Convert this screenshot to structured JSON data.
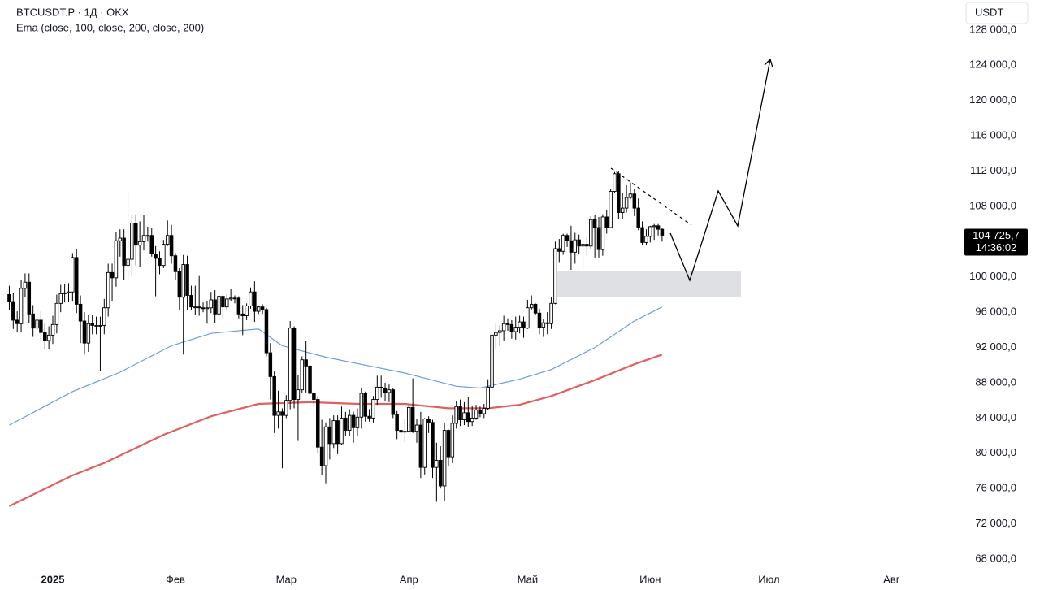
{
  "chart_data": {
    "type": "candlestick",
    "title": "BTCUSDT.P · 1Д · OKX",
    "subtitle": "Ema (close, 100, close, 200, close, 200)",
    "currency": "USDT",
    "last_price_label": "104 725,7",
    "countdown": "14:36:02",
    "up_color": "#ffffff",
    "down_color": "#000000",
    "xlim": [
      -13.35,
      230
    ],
    "xticks": [
      {
        "value": 0,
        "label": "2025"
      },
      {
        "value": 31,
        "label": "Фев"
      },
      {
        "value": 59,
        "label": "Мар"
      },
      {
        "value": 90,
        "label": "Апр"
      },
      {
        "value": 120,
        "label": "Май"
      },
      {
        "value": 151,
        "label": "Июн"
      },
      {
        "value": 181,
        "label": "Июл"
      },
      {
        "value": 212,
        "label": "Авг"
      }
    ],
    "ylim": [
      64500,
      131400
    ],
    "yticks": [
      {
        "value": 68000,
        "label": "68 000,0"
      },
      {
        "value": 72000,
        "label": "72 000,0"
      },
      {
        "value": 76000,
        "label": "76 000,0"
      },
      {
        "value": 80000,
        "label": "80 000,0"
      },
      {
        "value": 84000,
        "label": "84 000,0"
      },
      {
        "value": 88000,
        "label": "88 000,0"
      },
      {
        "value": 92000,
        "label": "92 000,0"
      },
      {
        "value": 96000,
        "label": "96 000,0"
      },
      {
        "value": 100000,
        "label": "100 000,0"
      },
      {
        "value": 104000,
        "label": "104 000,0"
      },
      {
        "value": 108000,
        "label": "108 000,0"
      },
      {
        "value": 112000,
        "label": "112 000,0"
      },
      {
        "value": 116000,
        "label": "116 000,0"
      },
      {
        "value": 120000,
        "label": "120 000,0"
      },
      {
        "value": 124000,
        "label": "124 000,0"
      },
      {
        "value": 128000,
        "label": "128 000,0"
      }
    ],
    "x": [
      -11,
      -10,
      -9,
      -8,
      -7,
      -6,
      -5,
      -4,
      -3,
      -2,
      -1,
      0,
      1,
      2,
      3,
      4,
      5,
      6,
      7,
      8,
      9,
      10,
      11,
      12,
      13,
      14,
      15,
      16,
      17,
      18,
      19,
      20,
      21,
      22,
      23,
      24,
      25,
      26,
      27,
      28,
      29,
      30,
      31,
      32,
      33,
      34,
      35,
      36,
      37,
      38,
      39,
      40,
      41,
      42,
      43,
      44,
      45,
      46,
      47,
      48,
      49,
      50,
      51,
      52,
      53,
      54,
      55,
      56,
      57,
      58,
      59,
      60,
      61,
      62,
      63,
      64,
      65,
      66,
      67,
      68,
      69,
      70,
      71,
      72,
      73,
      74,
      75,
      76,
      77,
      78,
      79,
      80,
      81,
      82,
      83,
      84,
      85,
      86,
      87,
      88,
      89,
      90,
      91,
      92,
      93,
      94,
      95,
      96,
      97,
      98,
      99,
      100,
      101,
      102,
      103,
      104,
      105,
      106,
      107,
      108,
      109,
      110,
      111,
      112,
      113,
      114,
      115,
      116,
      117,
      118,
      119,
      120,
      121,
      122,
      123,
      124,
      125,
      126,
      127,
      128,
      129,
      130,
      131,
      132,
      133,
      134,
      135,
      136,
      137,
      138,
      139,
      140,
      141,
      142,
      143,
      144,
      145,
      146,
      147,
      148,
      149,
      150,
      151,
      152,
      153,
      154
    ],
    "open": [
      98000,
      97200,
      95100,
      94700,
      98700,
      99400,
      95800,
      94200,
      95100,
      93700,
      92800,
      93400,
      94600,
      97000,
      98100,
      98200,
      98300,
      102200,
      96900,
      95000,
      92500,
      94700,
      94500,
      94500,
      94500,
      96500,
      100500,
      99900,
      104100,
      104400,
      101300,
      102000,
      106100,
      103600,
      104000,
      104700,
      104700,
      102600,
      102100,
      101300,
      103700,
      104700,
      102400,
      100600,
      97700,
      101400,
      97900,
      96600,
      96600,
      96500,
      96400,
      96500,
      97400,
      95800,
      97800,
      96600,
      97500,
      97600,
      97600,
      95800,
      95600,
      96700,
      98300,
      96100,
      96600,
      96300,
      91400,
      88700,
      84300,
      84700,
      84300,
      86000,
      94200,
      86100,
      87200,
      90600,
      89900,
      86800,
      86100,
      80700,
      78600,
      83000,
      81100,
      83700,
      81100,
      84000,
      82600,
      84300,
      82900,
      84100,
      86800,
      84200,
      84000,
      86100,
      87500,
      87400,
      86900,
      87200,
      84400,
      82600,
      82400,
      82500,
      85200,
      82500,
      83200,
      78400,
      83900,
      83500,
      78400,
      79200,
      76300,
      82600,
      79600,
      83400,
      85300,
      83800,
      84600,
      83600,
      84000,
      84900,
      84500,
      85100,
      87500,
      93400,
      93700,
      93900,
      94700,
      94600,
      93800,
      94300,
      94900,
      94200,
      96500,
      96900,
      95900,
      94300,
      94800,
      94700,
      97000,
      103200,
      102900,
      104700,
      104100,
      102800,
      104200,
      103500,
      103700,
      103500,
      106500,
      105600,
      103100,
      106800,
      105600,
      109700,
      111700,
      107300,
      107800,
      109000,
      109400,
      107800,
      105600,
      103900,
      104600,
      105700,
      105800,
      105400
    ],
    "high": [
      99000,
      98200,
      96100,
      99700,
      100400,
      100400,
      96800,
      96100,
      96100,
      94700,
      94400,
      95600,
      98000,
      99100,
      99200,
      99300,
      102700,
      103200,
      97900,
      96000,
      95700,
      95700,
      95500,
      95500,
      97500,
      101500,
      101500,
      105100,
      105400,
      105400,
      109500,
      107100,
      107100,
      106300,
      107000,
      105700,
      105500,
      103500,
      102900,
      104200,
      106400,
      105900,
      102700,
      101000,
      102500,
      102400,
      99000,
      99000,
      100100,
      97100,
      97300,
      98300,
      98500,
      98100,
      98000,
      98000,
      98600,
      97900,
      97800,
      96800,
      97000,
      98800,
      99500,
      96700,
      96900,
      96500,
      92500,
      89300,
      87100,
      85100,
      86600,
      95000,
      94400,
      88900,
      91000,
      92700,
      91200,
      87000,
      86500,
      83800,
      83500,
      84000,
      84300,
      84300,
      85300,
      84700,
      85000,
      84700,
      85100,
      87400,
      87000,
      85000,
      86500,
      88800,
      88800,
      88000,
      87800,
      87400,
      84800,
      83400,
      83900,
      85500,
      88500,
      83900,
      84700,
      84000,
      84200,
      83800,
      81200,
      80800,
      83500,
      82700,
      84300,
      85900,
      86100,
      85800,
      86400,
      85400,
      85500,
      85300,
      85600,
      88400,
      93800,
      94700,
      94500,
      95600,
      95300,
      95100,
      95500,
      95600,
      95500,
      97400,
      97900,
      97000,
      96400,
      95200,
      96000,
      97700,
      104000,
      104300,
      104900,
      104900,
      105800,
      105000,
      104800,
      104300,
      104500,
      106900,
      107000,
      106800,
      107100,
      107600,
      110000,
      111900,
      112000,
      109500,
      110400,
      110700,
      110000,
      108900,
      106300,
      105400,
      105800,
      106000,
      106000,
      105600
    ],
    "low": [
      96200,
      94100,
      93700,
      93700,
      97700,
      94800,
      93200,
      93200,
      92700,
      91800,
      91800,
      92400,
      93600,
      96000,
      97100,
      97200,
      97300,
      95900,
      92500,
      91200,
      91500,
      93500,
      93500,
      89300,
      93500,
      95500,
      97300,
      98900,
      102300,
      99700,
      99500,
      100100,
      101300,
      101100,
      103000,
      104000,
      102300,
      97800,
      100300,
      101000,
      103500,
      101500,
      99600,
      96300,
      91200,
      96200,
      96200,
      95700,
      95600,
      96000,
      94700,
      95900,
      94800,
      94900,
      95300,
      96300,
      97300,
      97000,
      95300,
      93400,
      95100,
      96400,
      94900,
      95800,
      95800,
      91000,
      86100,
      82300,
      82800,
      78300,
      84000,
      85000,
      85100,
      81400,
      86800,
      86900,
      84700,
      85300,
      80000,
      77500,
      76600,
      79300,
      80600,
      79900,
      80900,
      82000,
      82000,
      81200,
      81900,
      82800,
      83600,
      83600,
      83500,
      85500,
      86300,
      85900,
      85800,
      84000,
      81600,
      81600,
      81300,
      82400,
      82300,
      81200,
      77200,
      77600,
      82300,
      77200,
      74500,
      76000,
      74600,
      78500,
      78900,
      82800,
      83100,
      83200,
      83000,
      83100,
      83800,
      84100,
      84000,
      84900,
      87100,
      91900,
      92200,
      92800,
      93900,
      93000,
      92900,
      93600,
      93100,
      94100,
      96300,
      95700,
      93500,
      93200,
      93500,
      94100,
      96900,
      101600,
      102500,
      103400,
      100800,
      101500,
      102600,
      100900,
      102400,
      103200,
      102200,
      102200,
      102400,
      104900,
      105500,
      109500,
      106600,
      106600,
      107300,
      108800,
      106900,
      105300,
      103600,
      103600,
      103900,
      104200,
      104700,
      104000
    ],
    "close": [
      97200,
      95100,
      94700,
      98700,
      99400,
      95800,
      94200,
      95100,
      93700,
      92800,
      93400,
      94600,
      97000,
      98100,
      98200,
      98300,
      102200,
      96900,
      95000,
      92500,
      94700,
      94500,
      94500,
      94500,
      96500,
      100500,
      99900,
      104100,
      104400,
      101300,
      102000,
      106100,
      103600,
      104000,
      104700,
      104700,
      102600,
      102100,
      101300,
      103700,
      104700,
      102400,
      100600,
      97700,
      101400,
      97900,
      96600,
      96600,
      96500,
      96400,
      96500,
      97400,
      95800,
      97800,
      96600,
      97500,
      97600,
      97600,
      95800,
      95600,
      96700,
      98300,
      96100,
      96600,
      96300,
      91400,
      88700,
      84300,
      84700,
      84300,
      86000,
      94200,
      86100,
      87200,
      90600,
      89900,
      86800,
      86100,
      80700,
      78600,
      83000,
      81100,
      83700,
      81100,
      84000,
      82600,
      84300,
      82900,
      84100,
      86800,
      84200,
      84000,
      86100,
      87500,
      87400,
      86900,
      87200,
      84400,
      82600,
      82400,
      82500,
      85200,
      82500,
      83200,
      78400,
      83900,
      83500,
      78400,
      79200,
      76300,
      82600,
      79600,
      83400,
      85300,
      83800,
      84600,
      83600,
      84000,
      84900,
      84500,
      85100,
      87500,
      93400,
      93700,
      93900,
      94700,
      94600,
      93800,
      94300,
      94900,
      94200,
      96500,
      96900,
      95900,
      94300,
      94800,
      94700,
      97000,
      103200,
      102900,
      104700,
      104100,
      102800,
      104200,
      103500,
      103700,
      103500,
      106500,
      105600,
      103100,
      106800,
      105600,
      109700,
      111700,
      107300,
      107800,
      109000,
      109400,
      107800,
      105600,
      103900,
      104600,
      105700,
      105800,
      105400,
      104725.7
    ],
    "lines": [
      {
        "color": "#6b9be6",
        "width": 1.2,
        "x": [
          -11,
          5,
          17,
          30,
          40,
          52,
          58,
          69,
          79,
          89,
          102,
          108,
          118,
          126,
          137,
          147,
          154
        ],
        "values": [
          83200,
          87000,
          89200,
          92200,
          93600,
          94100,
          92200,
          90900,
          90000,
          89100,
          87600,
          87400,
          88400,
          89500,
          92000,
          95000,
          96600
        ]
      },
      {
        "color": "#e06060",
        "width": 2.2,
        "x": [
          -11,
          5,
          13,
          28,
          40,
          52,
          65,
          77,
          89,
          100,
          110,
          118,
          126,
          137,
          147,
          154
        ],
        "values": [
          74000,
          77500,
          78900,
          82100,
          84200,
          85600,
          85800,
          85600,
          85600,
          85100,
          85100,
          85500,
          86500,
          88300,
          90100,
          91200
        ]
      }
    ]
  }
}
